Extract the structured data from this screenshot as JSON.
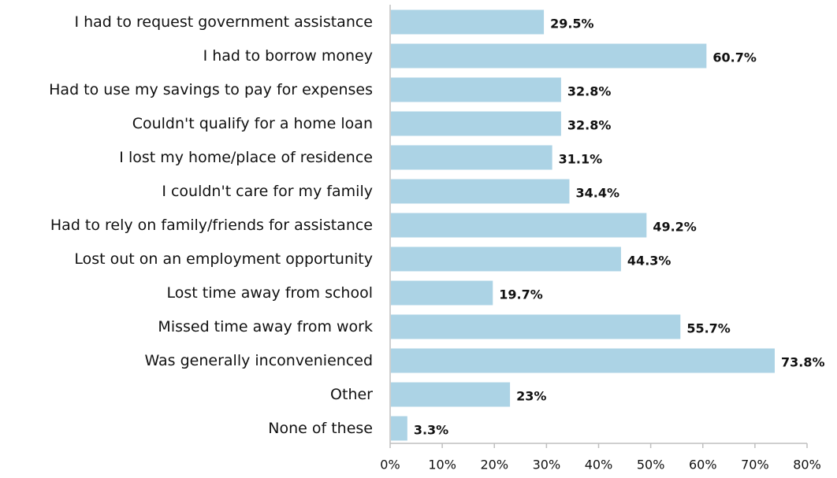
{
  "chart_data": {
    "type": "bar",
    "orientation": "horizontal",
    "title": "",
    "xlabel": "",
    "ylabel": "",
    "categories": [
      "I had to request government assistance",
      "I had to borrow money",
      "Had to use my savings to pay for expenses",
      "Couldn't qualify for a home loan",
      "I lost my home/place of residence",
      "I couldn't care for my family",
      "Had to rely on family/friends for assistance",
      "Lost out on an employment opportunity",
      "Lost time away from school",
      "Missed time away from work",
      "Was generally inconvenienced",
      "Other",
      "None of these"
    ],
    "values": [
      29.5,
      60.7,
      32.8,
      32.8,
      31.1,
      34.4,
      49.2,
      44.3,
      19.7,
      55.7,
      73.8,
      23,
      3.3
    ],
    "value_labels": [
      "29.5%",
      "60.7%",
      "32.8%",
      "32.8%",
      "31.1%",
      "34.4%",
      "49.2%",
      "44.3%",
      "19.7%",
      "55.7%",
      "73.8%",
      "23%",
      "3.3%"
    ],
    "xlim": [
      0,
      80
    ],
    "x_ticks": [
      0,
      10,
      20,
      30,
      40,
      50,
      60,
      70,
      80
    ],
    "x_tick_labels": [
      "0%",
      "10%",
      "20%",
      "30%",
      "40%",
      "50%",
      "60%",
      "70%",
      "80%"
    ],
    "bar_color": "#acd3e5",
    "grid": false,
    "legend": "none"
  }
}
